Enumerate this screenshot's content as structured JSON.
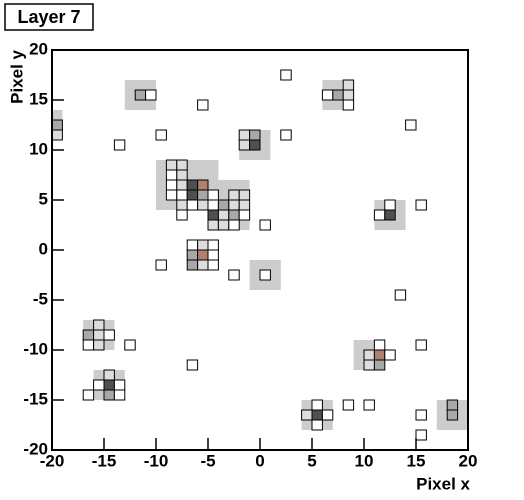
{
  "chart_data": {
    "type": "pixelmap",
    "title": "Layer 7",
    "x_label": "Pixel x",
    "y_label": "Pixel y",
    "xlim": [
      -20,
      20
    ],
    "ylim": [
      -20,
      20
    ],
    "xticks": [
      -20,
      -15,
      -10,
      -5,
      0,
      5,
      10,
      15,
      20
    ],
    "yticks": [
      -20,
      -15,
      -10,
      -5,
      0,
      5,
      10,
      15,
      20
    ],
    "cluster_color": "#cccccc",
    "palette": [
      "#ffffff",
      "#dddddd",
      "#a8a8a8",
      "#505050",
      "#b08070"
    ],
    "clusters": [
      {
        "x": [
          -13,
          -10
        ],
        "y": [
          14,
          17
        ]
      },
      {
        "x": [
          -20,
          -19
        ],
        "y": [
          11,
          14
        ]
      },
      {
        "x": [
          -2,
          1
        ],
        "y": [
          9,
          12
        ]
      },
      {
        "x": [
          6,
          9
        ],
        "y": [
          14,
          17
        ]
      },
      {
        "x": [
          -10,
          -4
        ],
        "y": [
          4,
          9
        ]
      },
      {
        "x": [
          -5,
          -1
        ],
        "y": [
          2,
          7
        ]
      },
      {
        "x": [
          -7,
          -4
        ],
        "y": [
          -2,
          1
        ]
      },
      {
        "x": [
          11,
          14
        ],
        "y": [
          2,
          5
        ]
      },
      {
        "x": [
          -17,
          -14
        ],
        "y": [
          -10,
          -7
        ]
      },
      {
        "x": [
          -16,
          -13
        ],
        "y": [
          -15,
          -12
        ]
      },
      {
        "x": [
          9,
          12
        ],
        "y": [
          -12,
          -9
        ]
      },
      {
        "x": [
          4,
          7
        ],
        "y": [
          -18,
          -15
        ]
      },
      {
        "x": [
          17,
          20
        ],
        "y": [
          -18,
          -15
        ]
      },
      {
        "x": [
          -1,
          2
        ],
        "y": [
          -4,
          -1
        ]
      }
    ],
    "hits": [
      {
        "x": 2.5,
        "y": 17.5,
        "level": 0
      },
      {
        "x": -5.5,
        "y": 14.5,
        "level": 0
      },
      {
        "x": -9.5,
        "y": 11.5,
        "level": 0
      },
      {
        "x": -13.5,
        "y": 10.5,
        "level": 0
      },
      {
        "x": 2.5,
        "y": 11.5,
        "level": 0
      },
      {
        "x": 14.5,
        "y": 12.5,
        "level": 0
      },
      {
        "x": 15.5,
        "y": 4.5,
        "level": 0
      },
      {
        "x": 0.5,
        "y": 2.5,
        "level": 0
      },
      {
        "x": -9.5,
        "y": -1.5,
        "level": 0
      },
      {
        "x": -2.5,
        "y": -2.5,
        "level": 0
      },
      {
        "x": 13.5,
        "y": -4.5,
        "level": 0
      },
      {
        "x": -12.5,
        "y": -9.5,
        "level": 0
      },
      {
        "x": 15.5,
        "y": -9.5,
        "level": 0
      },
      {
        "x": -6.5,
        "y": -11.5,
        "level": 0
      },
      {
        "x": -16.5,
        "y": -14.5,
        "level": 0
      },
      {
        "x": 8.5,
        "y": -15.5,
        "level": 0
      },
      {
        "x": 10.5,
        "y": -15.5,
        "level": 0
      },
      {
        "x": 15.5,
        "y": -16.5,
        "level": 0
      },
      {
        "x": 15.5,
        "y": -18.5,
        "level": 0
      },
      {
        "x": 0.5,
        "y": -2.5,
        "level": 0
      },
      {
        "x": -11.5,
        "y": 15.5,
        "level": 2
      },
      {
        "x": -10.5,
        "y": 15.5,
        "level": 0
      },
      {
        "x": -19.5,
        "y": 12.5,
        "level": 2
      },
      {
        "x": -19.5,
        "y": 11.5,
        "level": 1
      },
      {
        "x": -1.5,
        "y": 11.5,
        "level": 1
      },
      {
        "x": -0.5,
        "y": 11.5,
        "level": 2
      },
      {
        "x": -1.5,
        "y": 10.5,
        "level": 1
      },
      {
        "x": -0.5,
        "y": 10.5,
        "level": 3
      },
      {
        "x": 8.5,
        "y": 16.5,
        "level": 1
      },
      {
        "x": 6.5,
        "y": 15.5,
        "level": 0
      },
      {
        "x": 7.5,
        "y": 15.5,
        "level": 2
      },
      {
        "x": 8.5,
        "y": 15.5,
        "level": 1
      },
      {
        "x": 8.5,
        "y": 14.5,
        "level": 0
      },
      {
        "x": -8.5,
        "y": 8.5,
        "level": 1
      },
      {
        "x": -7.5,
        "y": 8.5,
        "level": 1
      },
      {
        "x": -8.5,
        "y": 7.5,
        "level": 0
      },
      {
        "x": -7.5,
        "y": 7.5,
        "level": 1
      },
      {
        "x": -8.5,
        "y": 6.5,
        "level": 0
      },
      {
        "x": -7.5,
        "y": 6.5,
        "level": 1
      },
      {
        "x": -6.5,
        "y": 6.5,
        "level": 3
      },
      {
        "x": -5.5,
        "y": 6.5,
        "level": 4
      },
      {
        "x": -8.5,
        "y": 5.5,
        "level": 0
      },
      {
        "x": -7.5,
        "y": 5.5,
        "level": 0
      },
      {
        "x": -6.5,
        "y": 5.5,
        "level": 3
      },
      {
        "x": -5.5,
        "y": 5.5,
        "level": 2
      },
      {
        "x": -4.5,
        "y": 5.5,
        "level": 0
      },
      {
        "x": -7.5,
        "y": 4.5,
        "level": 1
      },
      {
        "x": -6.5,
        "y": 4.5,
        "level": 0
      },
      {
        "x": -5.5,
        "y": 4.5,
        "level": 1
      },
      {
        "x": -4.5,
        "y": 4.5,
        "level": 0
      },
      {
        "x": -7.5,
        "y": 3.5,
        "level": 0
      },
      {
        "x": -2.5,
        "y": 5.5,
        "level": 1
      },
      {
        "x": -1.5,
        "y": 5.5,
        "level": 1
      },
      {
        "x": -3.5,
        "y": 4.5,
        "level": 2
      },
      {
        "x": -2.5,
        "y": 4.5,
        "level": 1
      },
      {
        "x": -1.5,
        "y": 4.5,
        "level": 1
      },
      {
        "x": -4.5,
        "y": 3.5,
        "level": 3
      },
      {
        "x": -3.5,
        "y": 3.5,
        "level": 1
      },
      {
        "x": -2.5,
        "y": 3.5,
        "level": 2
      },
      {
        "x": -1.5,
        "y": 3.5,
        "level": 0
      },
      {
        "x": -4.5,
        "y": 2.5,
        "level": 1
      },
      {
        "x": -3.5,
        "y": 2.5,
        "level": 1
      },
      {
        "x": -2.5,
        "y": 2.5,
        "level": 0
      },
      {
        "x": -6.5,
        "y": 0.5,
        "level": 0
      },
      {
        "x": -5.5,
        "y": 0.5,
        "level": 1
      },
      {
        "x": -4.5,
        "y": 0.5,
        "level": 0
      },
      {
        "x": -6.5,
        "y": -0.5,
        "level": 2
      },
      {
        "x": -5.5,
        "y": -0.5,
        "level": 4
      },
      {
        "x": -4.5,
        "y": -0.5,
        "level": 0
      },
      {
        "x": -6.5,
        "y": -1.5,
        "level": 2
      },
      {
        "x": -5.5,
        "y": -1.5,
        "level": 1
      },
      {
        "x": -4.5,
        "y": -1.5,
        "level": 0
      },
      {
        "x": 12.5,
        "y": 4.5,
        "level": 0
      },
      {
        "x": 11.5,
        "y": 3.5,
        "level": 0
      },
      {
        "x": 12.5,
        "y": 3.5,
        "level": 3
      },
      {
        "x": -15.5,
        "y": -7.5,
        "level": 1
      },
      {
        "x": -16.5,
        "y": -8.5,
        "level": 2
      },
      {
        "x": -15.5,
        "y": -8.5,
        "level": 1
      },
      {
        "x": -14.5,
        "y": -8.5,
        "level": 0
      },
      {
        "x": -16.5,
        "y": -9.5,
        "level": 0
      },
      {
        "x": -15.5,
        "y": -9.5,
        "level": 1
      },
      {
        "x": -14.5,
        "y": -12.5,
        "level": 1
      },
      {
        "x": -15.5,
        "y": -13.5,
        "level": 0
      },
      {
        "x": -14.5,
        "y": -13.5,
        "level": 3
      },
      {
        "x": -13.5,
        "y": -13.5,
        "level": 0
      },
      {
        "x": -14.5,
        "y": -14.5,
        "level": 2
      },
      {
        "x": -13.5,
        "y": -14.5,
        "level": 0
      },
      {
        "x": 11.5,
        "y": -9.5,
        "level": 0
      },
      {
        "x": 10.5,
        "y": -10.5,
        "level": 1
      },
      {
        "x": 11.5,
        "y": -10.5,
        "level": 4
      },
      {
        "x": 12.5,
        "y": -10.5,
        "level": 0
      },
      {
        "x": 10.5,
        "y": -11.5,
        "level": 1
      },
      {
        "x": 11.5,
        "y": -11.5,
        "level": 2
      },
      {
        "x": 5.5,
        "y": -15.5,
        "level": 0
      },
      {
        "x": 4.5,
        "y": -16.5,
        "level": 1
      },
      {
        "x": 5.5,
        "y": -16.5,
        "level": 3
      },
      {
        "x": 6.5,
        "y": -16.5,
        "level": 0
      },
      {
        "x": 5.5,
        "y": -17.5,
        "level": 0
      },
      {
        "x": 18.5,
        "y": -15.5,
        "level": 2
      },
      {
        "x": 18.5,
        "y": -16.5,
        "level": 2
      }
    ]
  }
}
